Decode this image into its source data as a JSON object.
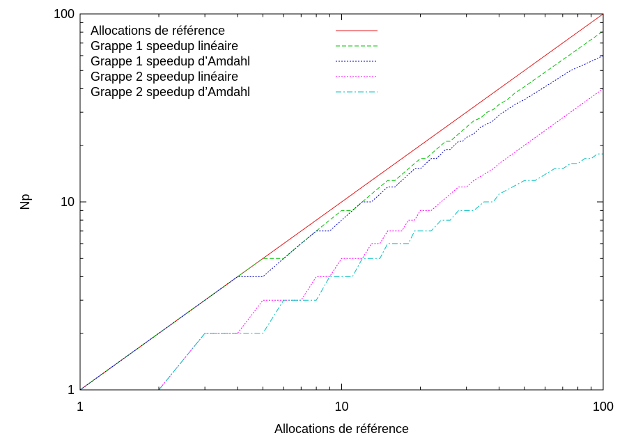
{
  "chart_data": {
    "type": "line",
    "xlabel": "Allocations de référence",
    "ylabel": "Np",
    "xscale": "log",
    "yscale": "log",
    "xlim": [
      1,
      100
    ],
    "ylim": [
      1,
      100
    ],
    "x_ticks": [
      {
        "value": 1,
        "label": "1"
      },
      {
        "value": 10,
        "label": "10"
      },
      {
        "value": 100,
        "label": "100"
      }
    ],
    "y_ticks": [
      {
        "value": 1,
        "label": "1"
      },
      {
        "value": 10,
        "label": "10"
      },
      {
        "value": 100,
        "label": "100"
      }
    ],
    "grid": false,
    "legend_position": "top-left",
    "series": [
      {
        "name": "Allocations de référence",
        "color": "#e41a1c",
        "dash": "solid",
        "x": [
          1,
          100
        ],
        "y": [
          1,
          100
        ]
      },
      {
        "name": "Grappe 1 speedup linéaire",
        "color": "#00c000",
        "dash": "dashed",
        "x": [
          1,
          2,
          3,
          4,
          5,
          6,
          7,
          8,
          9,
          10,
          11,
          12,
          13,
          14,
          15,
          16,
          17,
          18,
          19,
          20,
          21,
          22,
          23,
          24,
          25,
          26,
          27,
          28,
          29,
          30,
          32,
          34,
          36,
          38,
          40,
          43,
          46,
          50,
          55,
          60,
          65,
          70,
          75,
          80,
          85,
          90,
          95,
          100
        ],
        "y": [
          1,
          2,
          3,
          4,
          5,
          5,
          6,
          7,
          8,
          9,
          9,
          10,
          11,
          12,
          13,
          13,
          14,
          15,
          16,
          17,
          17,
          18,
          19,
          20,
          21,
          21,
          22,
          23,
          24,
          25,
          27,
          28,
          30,
          31,
          33,
          35,
          38,
          41,
          45,
          49,
          53,
          57,
          61,
          65,
          69,
          73,
          77,
          81
        ]
      },
      {
        "name": "Grappe 1 speedup d’Amdahl",
        "color": "#0000c0",
        "dash": "dotted",
        "x": [
          1,
          2,
          3,
          4,
          5,
          6,
          7,
          8,
          9,
          10,
          11,
          12,
          13,
          14,
          15,
          16,
          17,
          18,
          19,
          20,
          21,
          22,
          23,
          24,
          25,
          26,
          27,
          28,
          29,
          30,
          32,
          34,
          36,
          38,
          40,
          43,
          46,
          50,
          55,
          60,
          65,
          70,
          75,
          80,
          85,
          90,
          95,
          100
        ],
        "y": [
          1,
          2,
          3,
          4,
          4,
          5,
          6,
          7,
          7,
          8,
          9,
          10,
          10,
          11,
          12,
          12,
          13,
          14,
          15,
          15,
          16,
          17,
          17,
          18,
          19,
          19,
          20,
          21,
          21,
          22,
          23,
          25,
          26,
          27,
          29,
          31,
          33,
          35,
          38,
          41,
          44,
          47,
          50,
          52,
          54,
          56,
          58,
          60
        ]
      },
      {
        "name": "Grappe 2 speedup linéaire",
        "color": "#ff00ff",
        "dash": "dotted",
        "x": [
          2,
          3,
          4,
          5,
          6,
          7,
          8,
          9,
          10,
          11,
          12,
          13,
          14,
          15,
          16,
          17,
          18,
          19,
          20,
          22,
          24,
          26,
          28,
          30,
          32,
          35,
          38,
          40,
          45,
          50,
          55,
          60,
          65,
          70,
          75,
          80,
          85,
          90,
          95,
          100
        ],
        "y": [
          1,
          2,
          2,
          3,
          3,
          3,
          4,
          4,
          5,
          5,
          5,
          6,
          6,
          7,
          7,
          7,
          8,
          8,
          9,
          9,
          10,
          11,
          12,
          12,
          13,
          14,
          15,
          16,
          18,
          20,
          22,
          24,
          26,
          28,
          30,
          32,
          34,
          36,
          38,
          40
        ]
      },
      {
        "name": "Grappe 2 speedup d’Amdahl",
        "color": "#00c0c0",
        "dash": "dashdot",
        "x": [
          2,
          3,
          4,
          5,
          6,
          7,
          8,
          9,
          10,
          11,
          12,
          13,
          14,
          15,
          16,
          17,
          18,
          19,
          20,
          22,
          24,
          26,
          28,
          30,
          32,
          35,
          38,
          40,
          45,
          50,
          55,
          60,
          65,
          70,
          75,
          80,
          85,
          90,
          95,
          100
        ],
        "y": [
          1,
          2,
          2,
          2,
          3,
          3,
          3,
          4,
          4,
          4,
          5,
          5,
          5,
          6,
          6,
          6,
          6,
          7,
          7,
          7,
          8,
          8,
          9,
          9,
          9,
          10,
          10,
          11,
          12,
          13,
          13,
          14,
          15,
          15,
          16,
          16,
          17,
          17,
          18,
          18
        ]
      }
    ]
  }
}
